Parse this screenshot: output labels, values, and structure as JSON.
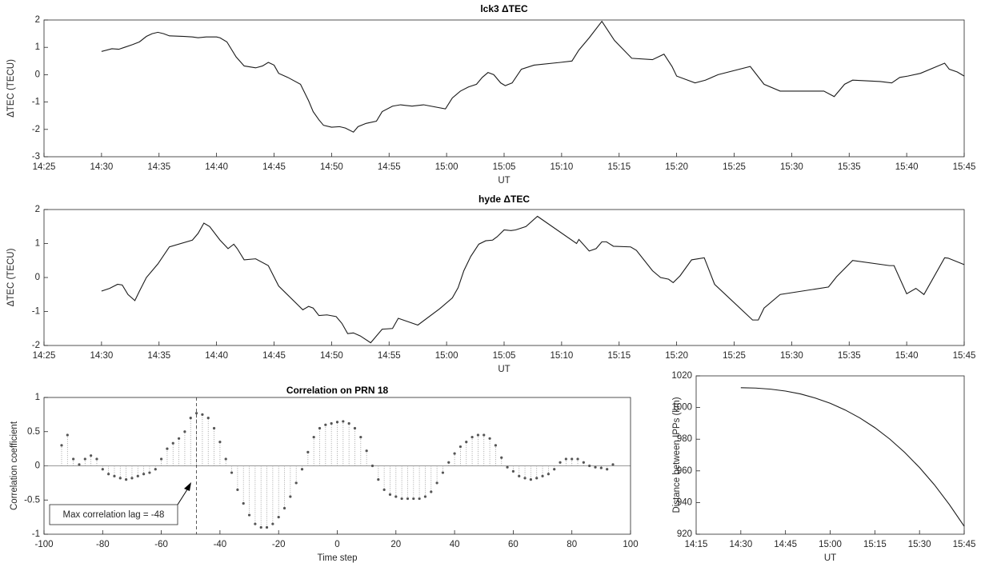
{
  "chart_data": [
    {
      "type": "line",
      "title": "lck3 ΔTEC",
      "xlabel": "UT",
      "ylabel": "ΔTEC (TECU)",
      "color": "#1a1a1a",
      "x": [
        870.0,
        870.9,
        871.5,
        872.0,
        872.7,
        873.3,
        873.9,
        874.4,
        874.9,
        875.4,
        875.9,
        877.2,
        877.9,
        878.4,
        879.1,
        880.0,
        880.3,
        880.9,
        881.7,
        882.4,
        883.4,
        884.0,
        884.5,
        885.0,
        885.4,
        886.2,
        887.3,
        888.0,
        888.4,
        888.9,
        889.3,
        890.0,
        890.7,
        891.2,
        891.9,
        892.3,
        893.0,
        893.9,
        894.4,
        895.3,
        896.0,
        897.0,
        898.0,
        899.9,
        900.5,
        901.2,
        901.9,
        902.6,
        903.1,
        903.6,
        904.1,
        904.7,
        905.1,
        905.7,
        906.5,
        907.6,
        909.9,
        910.9,
        911.5,
        912.4,
        913.5,
        914.6,
        916.1,
        917.9,
        918.9,
        919.6,
        920.0,
        921.6,
        922.5,
        923.6,
        926.4,
        927.6,
        929.0,
        932.8,
        933.7,
        934.6,
        935.3,
        937.7,
        938.7,
        939.4,
        940.1,
        941.2,
        943.3,
        943.7,
        944.4,
        945.0
      ],
      "values": [
        0.85,
        0.95,
        0.93,
        1.0,
        1.1,
        1.2,
        1.4,
        1.5,
        1.55,
        1.5,
        1.42,
        1.4,
        1.38,
        1.35,
        1.38,
        1.38,
        1.35,
        1.2,
        0.65,
        0.32,
        0.25,
        0.32,
        0.45,
        0.35,
        0.05,
        -0.1,
        -0.35,
        -0.95,
        -1.35,
        -1.65,
        -1.85,
        -1.92,
        -1.9,
        -1.95,
        -2.1,
        -1.9,
        -1.78,
        -1.7,
        -1.35,
        -1.15,
        -1.1,
        -1.15,
        -1.1,
        -1.25,
        -0.85,
        -0.6,
        -0.45,
        -0.35,
        -0.1,
        0.08,
        0.0,
        -0.3,
        -0.4,
        -0.3,
        0.2,
        0.35,
        0.45,
        0.5,
        0.9,
        1.35,
        1.95,
        1.25,
        0.6,
        0.55,
        0.75,
        0.3,
        -0.05,
        -0.3,
        -0.2,
        0.0,
        0.3,
        -0.35,
        -0.6,
        -0.6,
        -0.8,
        -0.35,
        -0.2,
        -0.25,
        -0.3,
        -0.1,
        -0.05,
        0.05,
        0.42,
        0.2,
        0.1,
        -0.05
      ],
      "xlim": [
        865,
        945
      ],
      "xticks": [
        {
          "value": 865,
          "label": "14:25"
        },
        {
          "value": 870,
          "label": "14:30"
        },
        {
          "value": 875,
          "label": "14:35"
        },
        {
          "value": 880,
          "label": "14:40"
        },
        {
          "value": 885,
          "label": "14:45"
        },
        {
          "value": 890,
          "label": "14:50"
        },
        {
          "value": 895,
          "label": "14:55"
        },
        {
          "value": 900,
          "label": "15:00"
        },
        {
          "value": 905,
          "label": "15:05"
        },
        {
          "value": 910,
          "label": "15:10"
        },
        {
          "value": 915,
          "label": "15:15"
        },
        {
          "value": 920,
          "label": "15:20"
        },
        {
          "value": 925,
          "label": "15:25"
        },
        {
          "value": 930,
          "label": "15:30"
        },
        {
          "value": 935,
          "label": "15:35"
        },
        {
          "value": 940,
          "label": "15:40"
        },
        {
          "value": 945,
          "label": "15:45"
        }
      ],
      "ylim": [
        -3,
        2
      ],
      "yticks": [
        -3,
        -2,
        -1,
        0,
        1,
        2
      ],
      "grid": false
    },
    {
      "type": "line",
      "title": "hyde ΔTEC",
      "xlabel": "UT",
      "ylabel": "ΔTEC (TECU)",
      "color": "#1a1a1a",
      "x": [
        870.0,
        870.7,
        871.4,
        871.8,
        872.3,
        872.9,
        873.3,
        873.9,
        874.9,
        875.9,
        877.9,
        878.4,
        878.9,
        879.4,
        880.3,
        881.0,
        881.5,
        881.8,
        882.4,
        883.4,
        884.5,
        885.4,
        887.5,
        888.0,
        888.4,
        888.9,
        889.6,
        890.4,
        890.9,
        891.4,
        891.9,
        892.5,
        893.4,
        894.4,
        895.3,
        895.8,
        897.5,
        899.4,
        900.5,
        901.0,
        901.5,
        902.1,
        902.8,
        903.4,
        904.0,
        904.4,
        905.0,
        905.6,
        906.0,
        906.9,
        907.9,
        911.3,
        911.5,
        912.4,
        913.0,
        913.5,
        913.9,
        914.5,
        916.0,
        916.5,
        917.9,
        918.6,
        919.3,
        919.7,
        920.3,
        921.3,
        922.4,
        923.3,
        926.6,
        927.1,
        927.6,
        929.0,
        933.2,
        933.9,
        935.3,
        938.5,
        938.9,
        940.0,
        940.8,
        941.5,
        943.3,
        943.6,
        945.0
      ],
      "values": [
        -0.4,
        -0.32,
        -0.2,
        -0.22,
        -0.5,
        -0.68,
        -0.4,
        0.0,
        0.4,
        0.9,
        1.1,
        1.3,
        1.6,
        1.5,
        1.1,
        0.85,
        0.98,
        0.85,
        0.52,
        0.55,
        0.35,
        -0.25,
        -0.95,
        -0.85,
        -0.9,
        -1.12,
        -1.1,
        -1.15,
        -1.35,
        -1.65,
        -1.63,
        -1.72,
        -1.92,
        -1.52,
        -1.5,
        -1.2,
        -1.4,
        -0.92,
        -0.6,
        -0.3,
        0.2,
        0.62,
        0.98,
        1.08,
        1.1,
        1.2,
        1.4,
        1.38,
        1.4,
        1.5,
        1.8,
        1.0,
        1.12,
        0.78,
        0.85,
        1.05,
        1.05,
        0.92,
        0.9,
        0.8,
        0.2,
        0.0,
        -0.05,
        -0.15,
        0.05,
        0.52,
        0.58,
        -0.2,
        -1.25,
        -1.25,
        -0.9,
        -0.5,
        -0.28,
        0.02,
        0.5,
        0.35,
        0.35,
        -0.48,
        -0.32,
        -0.5,
        0.58,
        0.57,
        0.38
      ],
      "xlim": [
        865,
        945
      ],
      "xticks": [
        {
          "value": 865,
          "label": "14:25"
        },
        {
          "value": 870,
          "label": "14:30"
        },
        {
          "value": 875,
          "label": "14:35"
        },
        {
          "value": 880,
          "label": "14:40"
        },
        {
          "value": 885,
          "label": "14:45"
        },
        {
          "value": 890,
          "label": "14:50"
        },
        {
          "value": 895,
          "label": "14:55"
        },
        {
          "value": 900,
          "label": "15:00"
        },
        {
          "value": 905,
          "label": "15:05"
        },
        {
          "value": 910,
          "label": "15:10"
        },
        {
          "value": 915,
          "label": "15:15"
        },
        {
          "value": 920,
          "label": "15:20"
        },
        {
          "value": 925,
          "label": "15:25"
        },
        {
          "value": 930,
          "label": "15:30"
        },
        {
          "value": 935,
          "label": "15:35"
        },
        {
          "value": 940,
          "label": "15:40"
        },
        {
          "value": 945,
          "label": "15:45"
        }
      ],
      "ylim": [
        -2,
        2
      ],
      "yticks": [
        -2,
        -1,
        0,
        1,
        2
      ],
      "grid": false
    },
    {
      "type": "stem",
      "title": "Correlation on PRN 18",
      "xlabel": "Time step",
      "ylabel": "Correlation coefficient",
      "color": "#555555",
      "annotation": "Max correlation lag = -48",
      "vline": -48,
      "x": [
        -94,
        -92,
        -90,
        -88,
        -86,
        -84,
        -82,
        -80,
        -78,
        -76,
        -74,
        -72,
        -70,
        -68,
        -66,
        -64,
        -62,
        -60,
        -58,
        -56,
        -54,
        -52,
        -50,
        -48,
        -46,
        -44,
        -42,
        -40,
        -38,
        -36,
        -34,
        -32,
        -30,
        -28,
        -26,
        -24,
        -22,
        -20,
        -18,
        -16,
        -14,
        -12,
        -10,
        -8,
        -6,
        -4,
        -2,
        0,
        2,
        4,
        6,
        8,
        10,
        12,
        14,
        16,
        18,
        20,
        22,
        24,
        26,
        28,
        30,
        32,
        34,
        36,
        38,
        40,
        42,
        44,
        46,
        48,
        50,
        52,
        54,
        56,
        58,
        60,
        62,
        64,
        66,
        68,
        70,
        72,
        74,
        76,
        78,
        80,
        82,
        84,
        86,
        88,
        90,
        92,
        94
      ],
      "values": [
        0.3,
        0.45,
        0.1,
        0.02,
        0.1,
        0.15,
        0.1,
        -0.05,
        -0.12,
        -0.15,
        -0.18,
        -0.2,
        -0.18,
        -0.15,
        -0.12,
        -0.1,
        -0.05,
        0.1,
        0.25,
        0.33,
        0.4,
        0.5,
        0.7,
        0.77,
        0.75,
        0.7,
        0.55,
        0.35,
        0.1,
        -0.1,
        -0.35,
        -0.55,
        -0.72,
        -0.85,
        -0.9,
        -0.9,
        -0.85,
        -0.75,
        -0.62,
        -0.45,
        -0.25,
        -0.05,
        0.2,
        0.42,
        0.55,
        0.6,
        0.62,
        0.64,
        0.65,
        0.62,
        0.55,
        0.42,
        0.22,
        0.0,
        -0.2,
        -0.35,
        -0.42,
        -0.45,
        -0.48,
        -0.48,
        -0.48,
        -0.48,
        -0.45,
        -0.38,
        -0.25,
        -0.1,
        0.05,
        0.18,
        0.28,
        0.35,
        0.42,
        0.45,
        0.45,
        0.4,
        0.3,
        0.12,
        -0.02,
        -0.08,
        -0.15,
        -0.18,
        -0.2,
        -0.18,
        -0.15,
        -0.12,
        -0.05,
        0.05,
        0.1,
        0.1,
        0.1,
        0.05,
        0.0,
        -0.02,
        -0.03,
        -0.05,
        0.02
      ],
      "xlim": [
        -100,
        100
      ],
      "xticks": [
        -100,
        -80,
        -60,
        -40,
        -20,
        0,
        20,
        40,
        60,
        80,
        100
      ],
      "ylim": [
        -1,
        1
      ],
      "yticks": [
        -1,
        -0.5,
        0,
        0.5,
        1
      ],
      "grid": false
    },
    {
      "type": "line",
      "xlabel": "UT",
      "ylabel": "Distance between IPPs (km)",
      "color": "#1a1a1a",
      "x": [
        870,
        875,
        880,
        885,
        890,
        895,
        900,
        905,
        910,
        915,
        920,
        925,
        930,
        935,
        940,
        945
      ],
      "values": [
        1012.5,
        1012.3,
        1011.6,
        1010.4,
        1008.6,
        1006.0,
        1002.7,
        998.5,
        993.4,
        987.3,
        980.1,
        971.7,
        962.1,
        951.2,
        938.8,
        925.0
      ],
      "xlim": [
        855,
        945
      ],
      "xticks": [
        {
          "value": 855,
          "label": "14:15"
        },
        {
          "value": 870,
          "label": "14:30"
        },
        {
          "value": 885,
          "label": "14:45"
        },
        {
          "value": 900,
          "label": "15:00"
        },
        {
          "value": 915,
          "label": "15:15"
        },
        {
          "value": 930,
          "label": "15:30"
        },
        {
          "value": 945,
          "label": "15:45"
        }
      ],
      "ylim": [
        920,
        1020
      ],
      "yticks": [
        920,
        940,
        960,
        980,
        1000,
        1020
      ],
      "grid": false
    }
  ]
}
